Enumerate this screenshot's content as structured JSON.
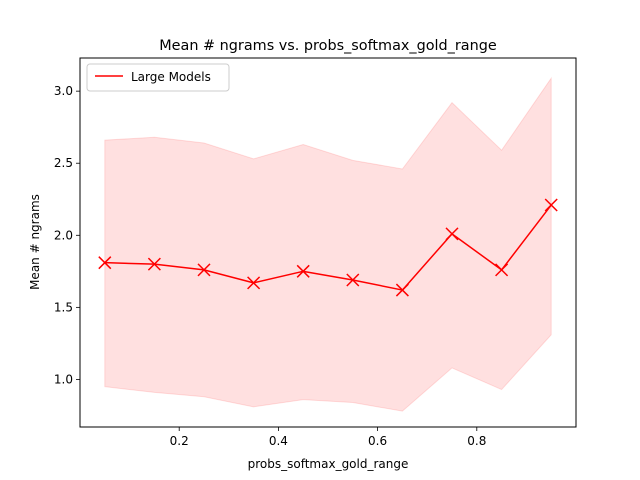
{
  "chart_data": {
    "type": "line",
    "title": "Mean # ngrams vs. probs_softmax_gold_range",
    "xlabel": "probs_softmax_gold_range",
    "ylabel": "Mean # ngrams",
    "xlim": [
      0.0,
      1.0
    ],
    "ylim": [
      0.67,
      3.23
    ],
    "xticks": [
      0.2,
      0.4,
      0.6,
      0.8
    ],
    "xtick_labels": [
      "0.2",
      "0.4",
      "0.6",
      "0.8"
    ],
    "yticks": [
      1.0,
      1.5,
      2.0,
      2.5,
      3.0
    ],
    "ytick_labels": [
      "1.0",
      "1.5",
      "2.0",
      "2.5",
      "3.0"
    ],
    "grid": false,
    "legend_position": "top-left",
    "series": [
      {
        "name": "Large Models",
        "color": "#ff0000",
        "marker": "x",
        "x": [
          0.05,
          0.15,
          0.25,
          0.35,
          0.45,
          0.55,
          0.65,
          0.75,
          0.85,
          0.95
        ],
        "y": [
          1.81,
          1.8,
          1.76,
          1.67,
          1.75,
          1.69,
          1.62,
          2.01,
          1.76,
          2.21
        ],
        "band_lower": [
          0.95,
          0.91,
          0.88,
          0.81,
          0.86,
          0.84,
          0.78,
          1.08,
          0.93,
          1.31
        ],
        "band_upper": [
          2.66,
          2.68,
          2.64,
          2.53,
          2.63,
          2.52,
          2.46,
          2.92,
          2.59,
          3.09
        ],
        "band_color": "#ffcccc"
      }
    ]
  }
}
